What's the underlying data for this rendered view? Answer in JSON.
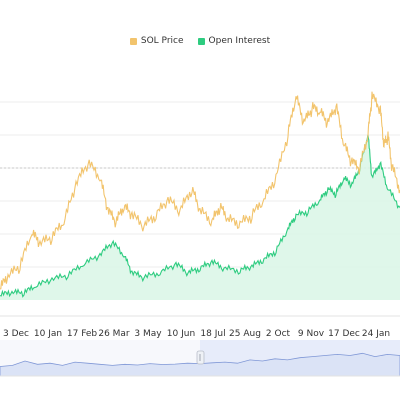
{
  "legend": {
    "price_label": "SOL Price",
    "oi_label": "Open Interest"
  },
  "colors": {
    "price": "#f2c46d",
    "oi": "#2ecc80",
    "oi_fill": "#d9f6e6",
    "navigator_fill": "#dbe3f6",
    "navigator_line": "#7f97d6",
    "grid": "#eeeeee",
    "dashed": "#c9c9c9"
  },
  "chart_data": {
    "type": "line",
    "x_ticks": [
      "3 Dec",
      "10 Jan",
      "17 Feb",
      "26 Mar",
      "3 May",
      "10 Jun",
      "18 Jul",
      "25 Aug",
      "2 Oct",
      "9 Nov",
      "17 Dec",
      "24 Jan"
    ],
    "legend_position": "top-center",
    "grid": true,
    "series": [
      {
        "name": "SOL Price",
        "x": [
          0,
          0.02,
          0.05,
          0.08,
          0.1,
          0.13,
          0.16,
          0.19,
          0.22,
          0.25,
          0.27,
          0.29,
          0.31,
          0.33,
          0.36,
          0.39,
          0.42,
          0.45,
          0.48,
          0.5,
          0.53,
          0.55,
          0.57,
          0.6,
          0.63,
          0.66,
          0.69,
          0.72,
          0.74,
          0.76,
          0.78,
          0.8,
          0.82,
          0.84,
          0.86,
          0.88,
          0.9,
          0.92,
          0.93,
          0.95,
          0.96,
          0.97,
          0.98,
          1.0
        ],
        "values": [
          0.05,
          0.1,
          0.15,
          0.3,
          0.25,
          0.28,
          0.35,
          0.52,
          0.62,
          0.55,
          0.4,
          0.35,
          0.42,
          0.38,
          0.33,
          0.38,
          0.45,
          0.4,
          0.5,
          0.4,
          0.35,
          0.42,
          0.36,
          0.34,
          0.38,
          0.45,
          0.55,
          0.75,
          0.92,
          0.8,
          0.87,
          0.85,
          0.8,
          0.88,
          0.7,
          0.62,
          0.6,
          0.75,
          0.92,
          0.87,
          0.7,
          0.74,
          0.6,
          0.5
        ]
      },
      {
        "name": "Open Interest",
        "x": [
          0,
          0.03,
          0.06,
          0.09,
          0.13,
          0.17,
          0.21,
          0.25,
          0.28,
          0.31,
          0.33,
          0.36,
          0.4,
          0.44,
          0.47,
          0.5,
          0.53,
          0.56,
          0.6,
          0.63,
          0.66,
          0.69,
          0.72,
          0.74,
          0.77,
          0.8,
          0.82,
          0.84,
          0.86,
          0.88,
          0.9,
          0.92,
          0.93,
          0.95,
          0.97,
          1.0
        ],
        "values": [
          0.02,
          0.03,
          0.03,
          0.06,
          0.09,
          0.11,
          0.16,
          0.2,
          0.26,
          0.2,
          0.12,
          0.1,
          0.12,
          0.16,
          0.12,
          0.14,
          0.17,
          0.14,
          0.13,
          0.15,
          0.18,
          0.22,
          0.32,
          0.38,
          0.4,
          0.45,
          0.5,
          0.48,
          0.55,
          0.52,
          0.6,
          0.75,
          0.55,
          0.62,
          0.5,
          0.42
        ]
      }
    ]
  }
}
